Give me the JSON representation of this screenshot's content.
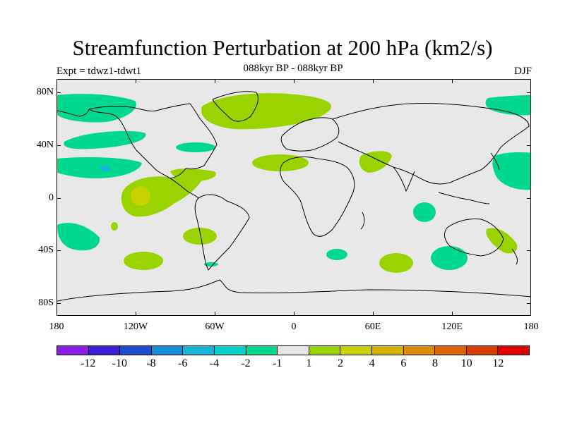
{
  "figure": {
    "title": "Streamfunction Perturbation at 200 hPa (km2/s)",
    "subtitle": "088kyr BP - 088kyr BP",
    "left_label": "Expt = tdwz1-tdwt1",
    "right_label": "DJF"
  },
  "axes": {
    "y_ticks": [
      "80N",
      "40N",
      "0",
      "40S",
      "80S"
    ],
    "x_ticks": [
      "180",
      "120W",
      "60W",
      "0",
      "60E",
      "120E",
      "180"
    ]
  },
  "colorbar": {
    "labels": [
      "-12",
      "-10",
      "-8",
      "-6",
      "-4",
      "-2",
      "-1",
      "1",
      "2",
      "4",
      "6",
      "8",
      "10",
      "12"
    ],
    "colors": [
      "#8a1de6",
      "#3a1fd8",
      "#1e4ecd",
      "#1590d8",
      "#18b4d8",
      "#00d2c8",
      "#00d890",
      "#e6e6e6",
      "#99d400",
      "#c8d200",
      "#d4b400",
      "#dc8c00",
      "#dc6400",
      "#dc3c00",
      "#e00000"
    ]
  },
  "map": {
    "background": "#e8e8e8",
    "coastline_color": "#000000"
  }
}
